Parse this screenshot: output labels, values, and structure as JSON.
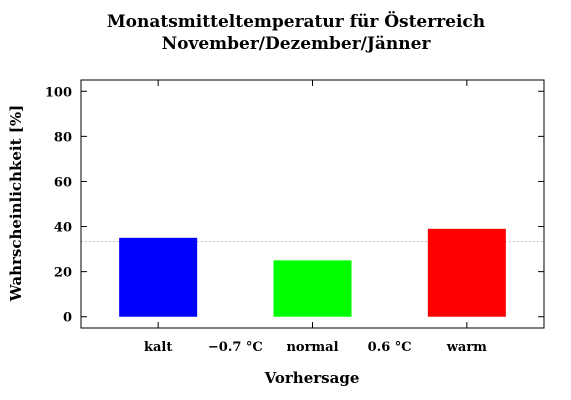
{
  "chart_data": {
    "type": "bar",
    "title_lines": [
      "Monatsmitteltemperatur für Österreich",
      "November/Dezember/Jänner"
    ],
    "xlabel": "Vorhersage",
    "ylabel": "Wahrscheinlichkeit [%]",
    "ylim": [
      -5,
      105
    ],
    "yticks": [
      0,
      20,
      40,
      60,
      80,
      100
    ],
    "categories": [
      "kalt",
      "normal",
      "warm"
    ],
    "values": [
      35,
      25,
      39
    ],
    "colors": [
      "#0000ff",
      "#00ff00",
      "#ff0000"
    ],
    "thresholds": [
      "−0.7 °C",
      "0.6 °C"
    ],
    "reference_line": 33.3,
    "grid": false
  }
}
